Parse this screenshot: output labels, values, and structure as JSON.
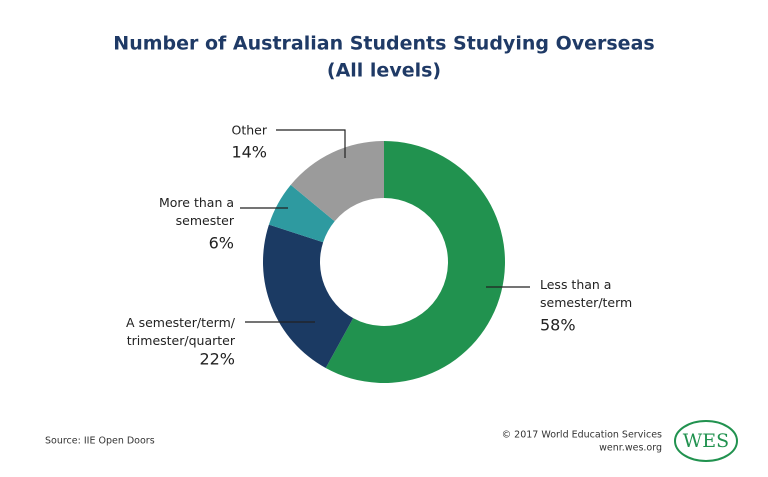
{
  "chart_data": {
    "type": "donut",
    "title": "Number of Australian Students Studying Overseas",
    "subtitle": "(All levels)",
    "categories": [
      "Less than a\nsemester/term",
      "A semester/term/\ntrimester/quarter",
      "More than a\nsemester",
      "Other"
    ],
    "values": [
      58,
      22,
      6,
      14
    ],
    "value_labels": [
      "58%",
      "22%",
      "6%",
      "14%"
    ],
    "colors": [
      "#21924f",
      "#1b3a63",
      "#2e9aa0",
      "#9b9b9b"
    ]
  },
  "footer": {
    "source": "Source: IIE Open Doors",
    "copyright": "© 2017 World Education Services",
    "site": "wenr.wes.org",
    "logo": "WES"
  }
}
